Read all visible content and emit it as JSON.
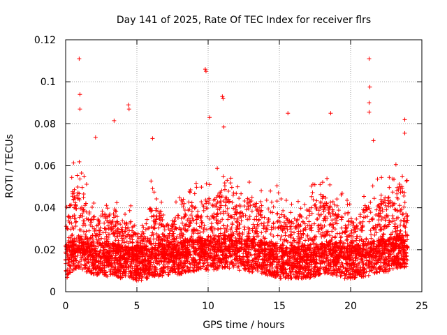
{
  "chart_data": {
    "type": "scatter",
    "title": "Day 141 of 2025, Rate Of TEC Index for receiver flrs",
    "xlabel": "GPS time / hours",
    "ylabel": "ROTI / TECUs",
    "xlim": [
      0,
      25
    ],
    "ylim": [
      0,
      0.12
    ],
    "x_ticks": [
      "0",
      "5",
      "10",
      "15",
      "20",
      "25"
    ],
    "y_ticks": [
      "0",
      "0.02",
      "0.04",
      "0.06",
      "0.08",
      "0.1",
      "0.12"
    ],
    "grid": true,
    "marker": "+",
    "series_color": "#ff0000",
    "notable_points": [
      {
        "x": 0.95,
        "y": 0.111
      },
      {
        "x": 1.0,
        "y": 0.094
      },
      {
        "x": 1.0,
        "y": 0.087
      },
      {
        "x": 4.4,
        "y": 0.089
      },
      {
        "x": 4.45,
        "y": 0.087
      },
      {
        "x": 9.8,
        "y": 0.106
      },
      {
        "x": 9.85,
        "y": 0.105
      },
      {
        "x": 10.1,
        "y": 0.083
      },
      {
        "x": 11.0,
        "y": 0.093
      },
      {
        "x": 11.05,
        "y": 0.092
      },
      {
        "x": 11.1,
        "y": 0.0785
      },
      {
        "x": 15.6,
        "y": 0.085
      },
      {
        "x": 18.6,
        "y": 0.085
      },
      {
        "x": 21.3,
        "y": 0.111
      },
      {
        "x": 21.35,
        "y": 0.0975
      },
      {
        "x": 21.3,
        "y": 0.09
      },
      {
        "x": 21.3,
        "y": 0.0855
      },
      {
        "x": 23.8,
        "y": 0.082
      },
      {
        "x": 23.8,
        "y": 0.0755
      },
      {
        "x": 6.1,
        "y": 0.073
      },
      {
        "x": 2.1,
        "y": 0.0735
      },
      {
        "x": 3.4,
        "y": 0.0815
      },
      {
        "x": 21.6,
        "y": 0.072
      }
    ],
    "density_profile": {
      "hours": [
        0,
        0.5,
        1,
        1.5,
        2,
        2.5,
        3,
        3.5,
        4,
        4.5,
        5,
        5.5,
        6,
        6.5,
        7,
        7.5,
        8,
        8.5,
        9,
        9.5,
        10,
        10.5,
        11,
        11.5,
        12,
        12.5,
        13,
        13.5,
        14,
        14.5,
        15,
        15.5,
        16,
        16.5,
        17,
        17.5,
        18,
        18.5,
        19,
        19.5,
        20,
        20.5,
        21,
        21.5,
        22,
        22.5,
        23,
        23.5,
        24
      ],
      "base": [
        0.015,
        0.018,
        0.02,
        0.018,
        0.017,
        0.016,
        0.016,
        0.016,
        0.015,
        0.015,
        0.014,
        0.014,
        0.016,
        0.016,
        0.016,
        0.017,
        0.017,
        0.018,
        0.018,
        0.019,
        0.019,
        0.019,
        0.02,
        0.02,
        0.019,
        0.019,
        0.018,
        0.018,
        0.017,
        0.016,
        0.015,
        0.015,
        0.015,
        0.015,
        0.015,
        0.016,
        0.017,
        0.017,
        0.016,
        0.015,
        0.015,
        0.015,
        0.016,
        0.017,
        0.018,
        0.018,
        0.019,
        0.02,
        0.02
      ],
      "upper": [
        0.035,
        0.055,
        0.062,
        0.048,
        0.04,
        0.042,
        0.045,
        0.04,
        0.035,
        0.04,
        0.03,
        0.032,
        0.05,
        0.045,
        0.035,
        0.04,
        0.042,
        0.045,
        0.048,
        0.05,
        0.055,
        0.052,
        0.058,
        0.05,
        0.048,
        0.052,
        0.05,
        0.048,
        0.045,
        0.05,
        0.045,
        0.04,
        0.038,
        0.042,
        0.045,
        0.048,
        0.055,
        0.052,
        0.048,
        0.042,
        0.038,
        0.04,
        0.048,
        0.055,
        0.05,
        0.052,
        0.055,
        0.06,
        0.05
      ]
    }
  }
}
